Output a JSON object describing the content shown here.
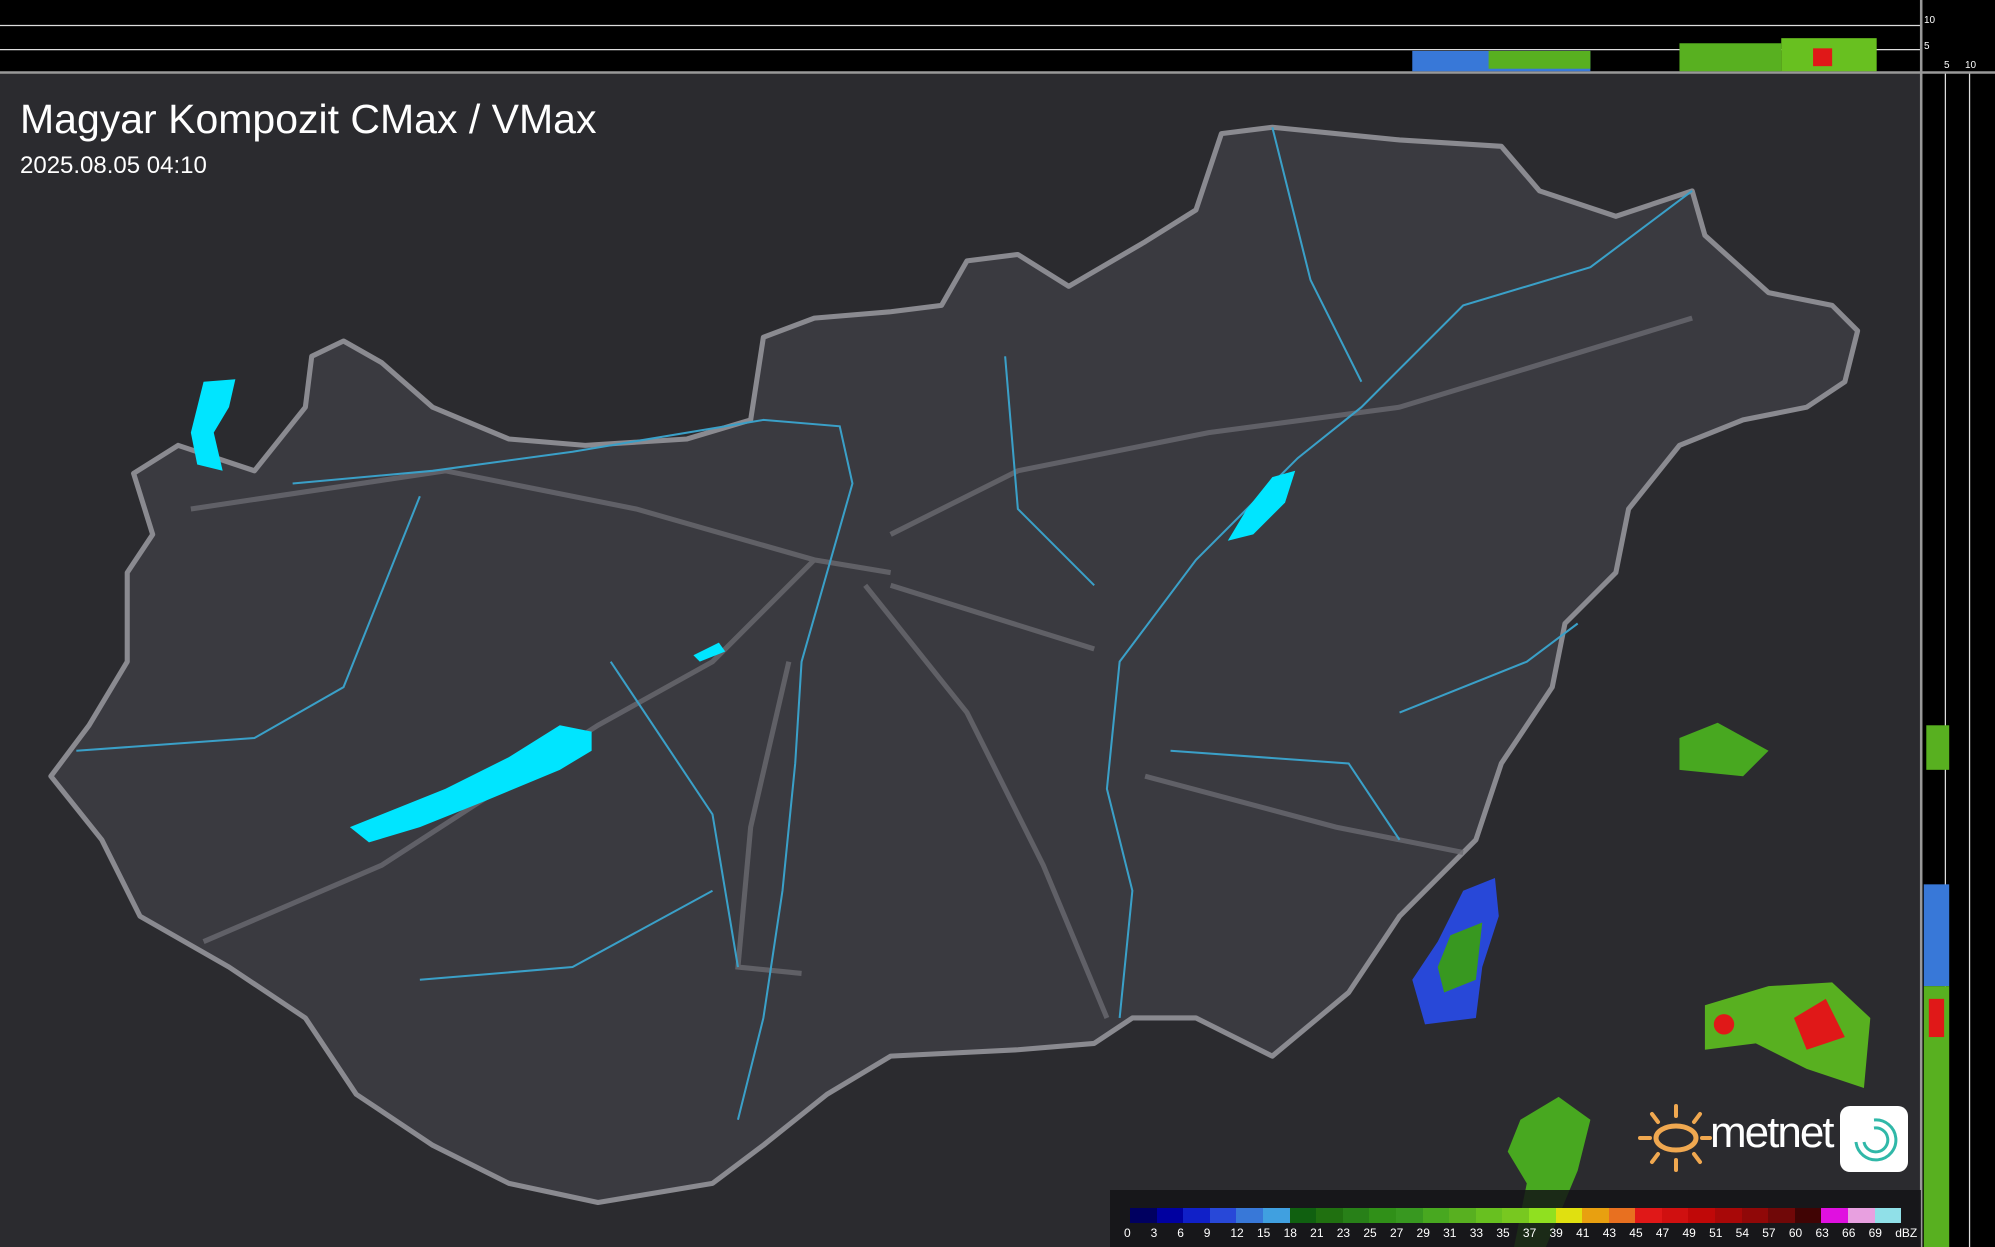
{
  "header": {
    "title": "Magyar Kompozit CMax / VMax",
    "timestamp": "2025.08.05 04:10"
  },
  "top_profile_axis": {
    "labels": [
      "10",
      "5"
    ]
  },
  "side_profile_axis": {
    "labels": [
      "5",
      "10"
    ]
  },
  "legend": {
    "unit": "dBZ",
    "labels": [
      "0",
      "3",
      "6",
      "9",
      "12",
      "15",
      "18",
      "21",
      "23",
      "25",
      "27",
      "29",
      "31",
      "33",
      "35",
      "37",
      "39",
      "41",
      "43",
      "45",
      "47",
      "49",
      "51",
      "54",
      "57",
      "60",
      "63",
      "66",
      "69"
    ],
    "colors": [
      "#000060",
      "#0000a0",
      "#1020c8",
      "#2848d8",
      "#3878d8",
      "#40a0e0",
      "#106010",
      "#207010",
      "#288018",
      "#309018",
      "#389820",
      "#48a820",
      "#58b020",
      "#68c020",
      "#78c820",
      "#90e020",
      "#e0e010",
      "#e8a010",
      "#e87020",
      "#e01818",
      "#d01010",
      "#c00808",
      "#a80808",
      "#900808",
      "#700808",
      "#400404",
      "#e010e0",
      "#e8a0e0",
      "#90e0e8"
    ]
  },
  "logo": {
    "text": "metnet"
  },
  "colors": {
    "lake": "#00e5ff",
    "river": "#3aa0c8",
    "border": "#8a8a90",
    "country": "#3a3a40",
    "background": "#2a2a2e"
  }
}
